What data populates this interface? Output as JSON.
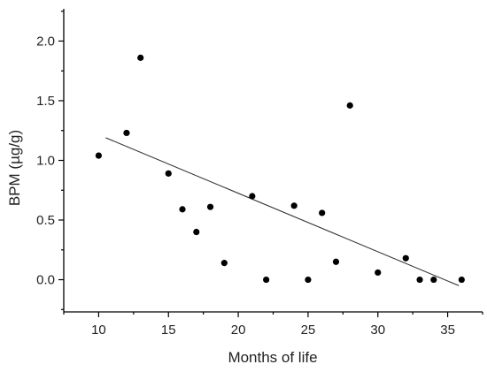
{
  "chart_data": {
    "type": "scatter",
    "xlabel": "Months of life",
    "ylabel": "BPM (µg/g)",
    "xlim": [
      7.5,
      37.5
    ],
    "ylim": [
      -0.27,
      2.27
    ],
    "x_ticks": [
      10,
      15,
      20,
      25,
      30,
      35
    ],
    "x_tick_labels": [
      "10",
      "15",
      "20",
      "25",
      "30",
      "35"
    ],
    "y_ticks": [
      0.0,
      0.5,
      1.0,
      1.5,
      2.0
    ],
    "y_tick_labels": [
      "0.0",
      "0.5",
      "1.0",
      "1.5",
      "2.0"
    ],
    "grid": false,
    "series": [
      {
        "x": [
          10,
          12,
          13,
          15,
          16,
          17,
          18,
          19,
          21,
          22,
          24,
          25,
          26,
          27,
          28,
          30,
          32,
          33,
          34,
          36
        ],
        "y": [
          1.04,
          1.23,
          1.86,
          0.89,
          0.59,
          0.4,
          0.61,
          0.14,
          0.7,
          0.0,
          0.62,
          0.0,
          0.56,
          0.15,
          1.46,
          0.06,
          0.18,
          0.0,
          0.0,
          0.0
        ]
      }
    ],
    "trend_line": {
      "x": [
        10.5,
        35.8
      ],
      "y": [
        1.19,
        -0.05
      ]
    },
    "colors": {
      "points": "#000000",
      "trend_line": "#333333",
      "axes": "#000000"
    }
  }
}
